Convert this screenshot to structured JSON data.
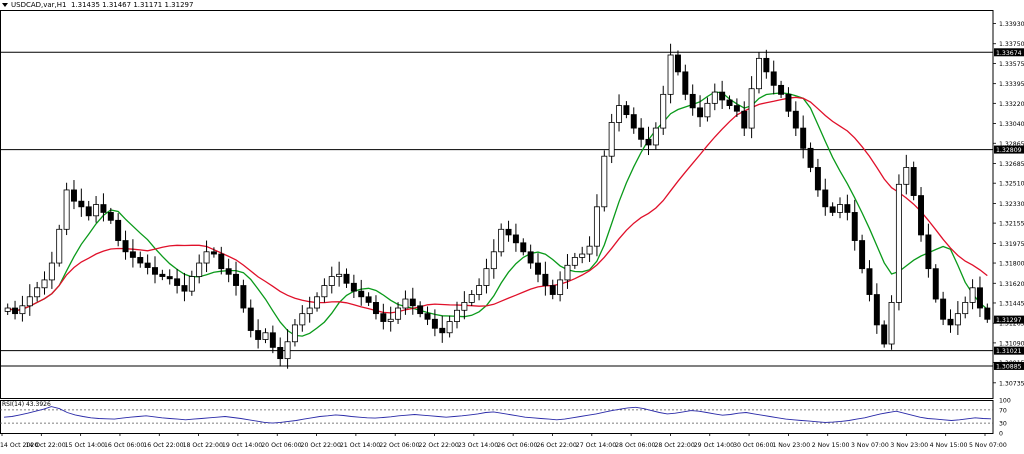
{
  "window": {
    "symbol": "USDCAD,var,H1",
    "ohlc": "1.31435 1.31467 1.31171 1.31297"
  },
  "colors": {
    "background": "#ffffff",
    "candle": "#000000",
    "ma_fast": "#0a9a1a",
    "ma_slow": "#e0102a",
    "rsi_line": "#2a2aa8",
    "hline": "#000000"
  },
  "chart_data": [
    {
      "type": "line",
      "subtype": "candlestick",
      "title": "USDCAD,var,H1",
      "ylim": [
        1.306,
        1.3405
      ],
      "y_ticks": [
        "1.33930",
        "1.33750",
        "1.33575",
        "1.33395",
        "1.33220",
        "1.33040",
        "1.32865",
        "1.32685",
        "1.32510",
        "1.32330",
        "1.32155",
        "1.31975",
        "1.31800",
        "1.31620",
        "1.31445",
        "1.31265",
        "1.31090",
        "1.30915",
        "1.30735"
      ],
      "price_labels": [
        {
          "value": 1.33674,
          "label": "1.33674"
        },
        {
          "value": 1.32809,
          "label": "1.32809"
        },
        {
          "value": 1.31297,
          "label": "1.31297"
        },
        {
          "value": 1.31021,
          "label": "1.31021"
        },
        {
          "value": 1.30885,
          "label": "1.30885"
        }
      ],
      "horizontal_lines": [
        1.33674,
        1.32809,
        1.31021,
        1.30885
      ],
      "x_ticks": [
        "14 Oct 2020",
        "14 Oct 22:00",
        "15 Oct 14:00",
        "16 Oct 06:00",
        "16 Oct 22:00",
        "18 Oct 22:00",
        "19 Oct 14:00",
        "20 Oct 06:00",
        "20 Oct 22:00",
        "21 Oct 14:00",
        "22 Oct 06:00",
        "22 Oct 22:00",
        "23 Oct 14:00",
        "26 Oct 06:00",
        "26 Oct 22:00",
        "27 Oct 14:00",
        "28 Oct 06:00",
        "28 Oct 22:00",
        "29 Oct 14:00",
        "30 Oct 06:00",
        "1 Nov 23:00",
        "2 Nov 15:00",
        "3 Nov 07:00",
        "3 Nov 23:00",
        "4 Nov 15:00",
        "5 Nov 07:00"
      ],
      "close_series": [
        1.314,
        1.3135,
        1.3142,
        1.315,
        1.3158,
        1.3165,
        1.318,
        1.321,
        1.3245,
        1.3235,
        1.323,
        1.3222,
        1.3232,
        1.3225,
        1.3218,
        1.32,
        1.319,
        1.3185,
        1.318,
        1.3176,
        1.317,
        1.3168,
        1.3166,
        1.316,
        1.3155,
        1.3168,
        1.318,
        1.319,
        1.3188,
        1.3175,
        1.317,
        1.316,
        1.314,
        1.312,
        1.3112,
        1.3118,
        1.3105,
        1.3095,
        1.311,
        1.3125,
        1.3135,
        1.314,
        1.315,
        1.316,
        1.3168,
        1.317,
        1.3162,
        1.3155,
        1.315,
        1.3145,
        1.3135,
        1.3128,
        1.313,
        1.314,
        1.3148,
        1.3142,
        1.3135,
        1.313,
        1.3122,
        1.3118,
        1.3128,
        1.3138,
        1.3145,
        1.3152,
        1.316,
        1.3175,
        1.319,
        1.321,
        1.3205,
        1.3198,
        1.319,
        1.318,
        1.317,
        1.316,
        1.3152,
        1.3165,
        1.3178,
        1.3185,
        1.3188,
        1.3195,
        1.323,
        1.3275,
        1.3305,
        1.332,
        1.3312,
        1.33,
        1.329,
        1.3285,
        1.33,
        1.333,
        1.3365,
        1.335,
        1.333,
        1.3318,
        1.331,
        1.3322,
        1.3332,
        1.3325,
        1.332,
        1.3315,
        1.33,
        1.3335,
        1.3362,
        1.335,
        1.3338,
        1.333,
        1.3315,
        1.33,
        1.3282,
        1.3265,
        1.3245,
        1.323,
        1.3225,
        1.3232,
        1.3225,
        1.32,
        1.3175,
        1.3152,
        1.3125,
        1.3108,
        1.3145,
        1.325,
        1.3265,
        1.324,
        1.3205,
        1.3175,
        1.3148,
        1.313,
        1.3125,
        1.3135,
        1.3145,
        1.3158,
        1.314,
        1.313
      ]
    },
    {
      "type": "line",
      "title": "RSI(14) 43.3926",
      "ylim": [
        0,
        100
      ],
      "y_ticks": [
        "100",
        "70",
        "30",
        "0"
      ],
      "levels": [
        70,
        30
      ],
      "values": [
        48,
        50,
        55,
        60,
        66,
        72,
        80,
        74,
        62,
        55,
        50,
        46,
        44,
        43,
        42,
        45,
        48,
        50,
        52,
        49,
        46,
        44,
        42,
        40,
        42,
        44,
        46,
        48,
        50,
        47,
        44,
        40,
        36,
        32,
        30,
        32,
        35,
        38,
        42,
        46,
        50,
        52,
        55,
        53,
        50,
        48,
        46,
        45,
        47,
        49,
        52,
        54,
        56,
        54,
        52,
        50,
        48,
        50,
        52,
        55,
        58,
        62,
        64,
        60,
        56,
        52,
        48,
        46,
        44,
        42,
        40,
        42,
        46,
        50,
        54,
        58,
        63,
        68,
        72,
        76,
        78,
        74,
        68,
        62,
        58,
        60,
        64,
        68,
        66,
        62,
        58,
        54,
        56,
        60,
        62,
        58,
        54,
        50,
        46,
        42,
        40,
        38,
        36,
        34,
        32,
        33,
        35,
        38,
        42,
        46,
        52,
        58,
        62,
        66,
        60,
        54,
        48,
        44,
        42,
        40,
        38,
        40,
        43,
        46,
        44,
        43
      ]
    }
  ]
}
